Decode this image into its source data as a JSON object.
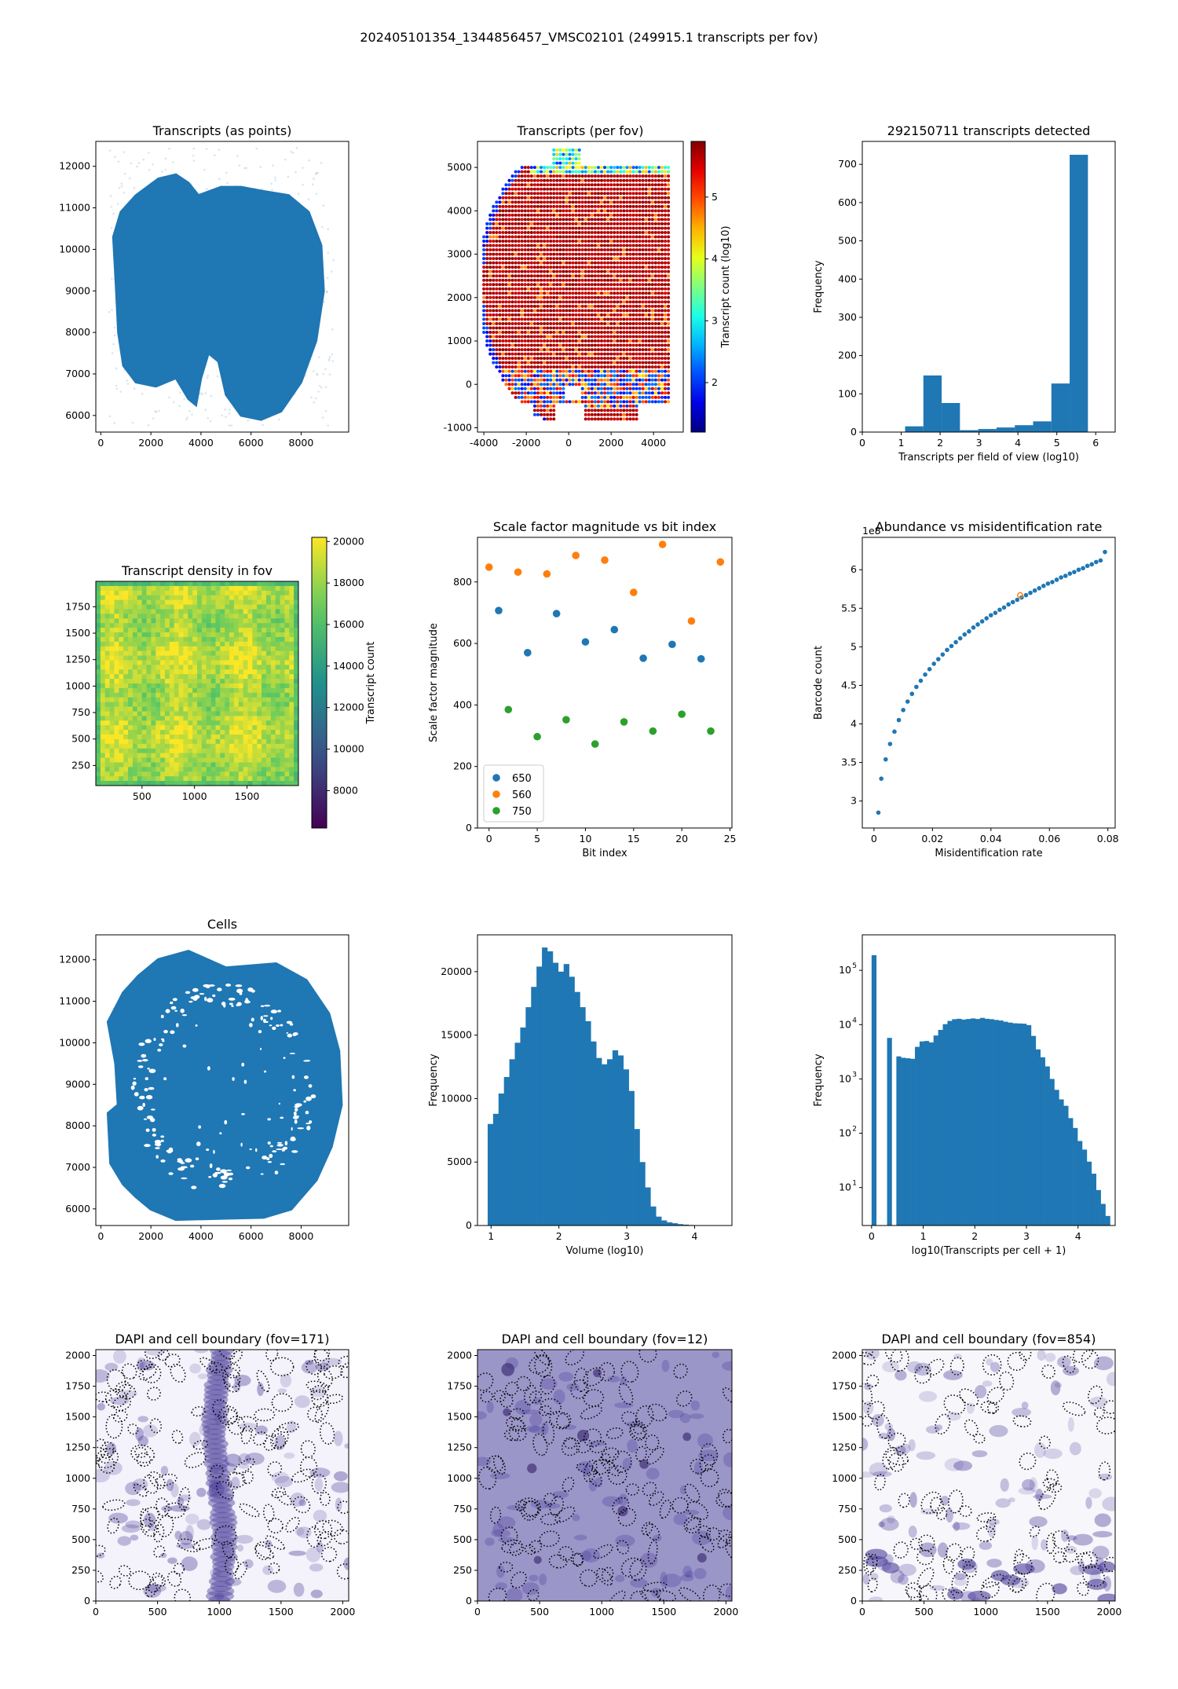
{
  "suptitle": "202405101354_1344856457_VMSC02101 (249915.1 transcripts per fov)",
  "colors": {
    "blue": "#1f77b4",
    "orange": "#ff7f0e",
    "green": "#2ca02c",
    "dapi": "#4a3d9a"
  },
  "chart_data": [
    {
      "id": "transcripts-points",
      "type": "scatter",
      "title": "Transcripts (as points)",
      "xlabel": "",
      "ylabel": "",
      "xlim": [
        -200,
        9900
      ],
      "ylim": [
        5600,
        12600
      ],
      "xticks": [
        0,
        2000,
        4000,
        6000,
        8000
      ],
      "yticks": [
        6000,
        7000,
        8000,
        9000,
        10000,
        11000,
        12000
      ],
      "shape": [
        [
          500,
          10300
        ],
        [
          600,
          9200
        ],
        [
          700,
          8000
        ],
        [
          900,
          7200
        ],
        [
          1400,
          6800
        ],
        [
          2200,
          6700
        ],
        [
          3000,
          6900
        ],
        [
          3500,
          6400
        ],
        [
          3800,
          6250
        ],
        [
          4000,
          6900
        ],
        [
          4300,
          7500
        ],
        [
          4700,
          7300
        ],
        [
          5000,
          6500
        ],
        [
          5600,
          6000
        ],
        [
          6400,
          5900
        ],
        [
          7200,
          6100
        ],
        [
          8000,
          6800
        ],
        [
          8600,
          7800
        ],
        [
          8900,
          9000
        ],
        [
          8800,
          10100
        ],
        [
          8300,
          10900
        ],
        [
          7500,
          11300
        ],
        [
          6500,
          11400
        ],
        [
          5600,
          11500
        ],
        [
          4800,
          11500
        ],
        [
          3900,
          11300
        ],
        [
          3500,
          11600
        ],
        [
          3000,
          11800
        ],
        [
          2300,
          11700
        ],
        [
          1400,
          11300
        ],
        [
          800,
          10900
        ]
      ],
      "halo": [
        [
          400,
          11000
        ],
        [
          9300,
          11000
        ],
        [
          9500,
          8000
        ],
        [
          9100,
          6300
        ],
        [
          7000,
          5800
        ],
        [
          3000,
          5800
        ],
        [
          800,
          6400
        ],
        [
          300,
          8500
        ]
      ]
    },
    {
      "id": "transcripts-fov",
      "type": "scatter",
      "title": "Transcripts (per fov)",
      "xlabel": "",
      "ylabel": "",
      "xlim": [
        -4300,
        5400
      ],
      "ylim": [
        -1100,
        5600
      ],
      "xticks": [
        -4000,
        -2000,
        0,
        2000,
        4000
      ],
      "yticks": [
        -1000,
        0,
        1000,
        2000,
        3000,
        4000,
        5000
      ],
      "colorbar": {
        "label": "Transcript count (log10)",
        "ticks": [
          2,
          3,
          4,
          5
        ],
        "range": [
          1.2,
          5.9
        ],
        "colormap": "jet"
      }
    },
    {
      "id": "transcripts-hist",
      "type": "bar",
      "title": "292150711 transcripts detected",
      "xlabel": "Transcripts per field of view (log10)",
      "ylabel": "Frequency",
      "xlim": [
        0,
        6.5
      ],
      "ylim": [
        0,
        760
      ],
      "xticks": [
        0,
        1,
        2,
        3,
        4,
        5,
        6
      ],
      "yticks": [
        0,
        100,
        200,
        300,
        400,
        500,
        600,
        700
      ],
      "bin_edges": [
        1.1,
        1.57,
        2.04,
        2.51,
        2.98,
        3.45,
        3.92,
        4.39,
        4.86,
        5.33,
        5.8
      ],
      "values": [
        15,
        148,
        76,
        5,
        8,
        12,
        18,
        28,
        127,
        725
      ]
    },
    {
      "id": "density-fov",
      "type": "heatmap",
      "title": "Transcript density in fov",
      "xlabel": "",
      "ylabel": "",
      "xlim": [
        60,
        1990
      ],
      "ylim": [
        60,
        1990
      ],
      "xticks": [
        500,
        1000,
        1500
      ],
      "yticks": [
        250,
        500,
        750,
        1000,
        1250,
        1500,
        1750
      ],
      "colorbar": {
        "label": "Transcript count",
        "ticks": [
          8000,
          10000,
          12000,
          14000,
          16000,
          18000,
          20000
        ],
        "range": [
          6200,
          20200
        ],
        "colormap": "viridis"
      }
    },
    {
      "id": "scale-factor",
      "type": "scatter",
      "title": "Scale factor magnitude vs bit index",
      "xlabel": "Bit index",
      "ylabel": "Scale factor magnitude",
      "xlim": [
        -1.2,
        25.2
      ],
      "ylim": [
        0,
        945
      ],
      "xticks": [
        0,
        5,
        10,
        15,
        20,
        25
      ],
      "yticks": [
        0,
        200,
        400,
        600,
        800
      ],
      "legend": "lower-left",
      "series": [
        {
          "name": "650",
          "color": "#1f77b4",
          "x": [
            1,
            4,
            7,
            10,
            13,
            16,
            19,
            22
          ],
          "y": [
            707,
            570,
            697,
            605,
            645,
            552,
            597,
            550
          ]
        },
        {
          "name": "560",
          "color": "#ff7f0e",
          "x": [
            0,
            3,
            6,
            9,
            12,
            15,
            18,
            21,
            24
          ],
          "y": [
            848,
            832,
            826,
            886,
            871,
            766,
            922,
            673,
            865
          ]
        },
        {
          "name": "750",
          "color": "#2ca02c",
          "x": [
            2,
            5,
            8,
            11,
            14,
            17,
            20,
            23
          ],
          "y": [
            385,
            297,
            352,
            273,
            345,
            315,
            370,
            315
          ]
        }
      ]
    },
    {
      "id": "abundance",
      "type": "scatter",
      "title": "Abundance vs misidentification rate",
      "xlabel": "Misidentification rate",
      "ylabel": "Barcode count",
      "offset_text": "1e8",
      "xlim": [
        -0.004,
        0.0825
      ],
      "ylim": [
        2.65,
        6.42
      ],
      "xticks": [
        0.0,
        0.02,
        0.04,
        0.06,
        0.08
      ],
      "yticks": [
        3.0,
        3.5,
        4.0,
        4.5,
        5.0,
        5.5,
        6.0
      ],
      "series": [
        {
          "color": "#1f77b4",
          "x": [
            0.0015,
            0.0025,
            0.004,
            0.0055,
            0.007,
            0.0085,
            0.01,
            0.0115,
            0.013,
            0.0145,
            0.016,
            0.0175,
            0.019,
            0.0205,
            0.022,
            0.0235,
            0.025,
            0.0265,
            0.028,
            0.0295,
            0.031,
            0.0325,
            0.034,
            0.0355,
            0.037,
            0.0385,
            0.04,
            0.0415,
            0.043,
            0.0445,
            0.046,
            0.0475,
            0.049,
            0.0505,
            0.052,
            0.0535,
            0.055,
            0.0565,
            0.058,
            0.0595,
            0.061,
            0.0625,
            0.064,
            0.0655,
            0.067,
            0.0685,
            0.07,
            0.0715,
            0.073,
            0.0745,
            0.076,
            0.0775,
            0.079
          ],
          "y": [
            2.85,
            3.29,
            3.54,
            3.74,
            3.9,
            4.05,
            4.18,
            4.29,
            4.39,
            4.48,
            4.56,
            4.64,
            4.71,
            4.78,
            4.84,
            4.9,
            4.96,
            5.01,
            5.06,
            5.11,
            5.16,
            5.2,
            5.25,
            5.29,
            5.33,
            5.37,
            5.41,
            5.44,
            5.48,
            5.51,
            5.55,
            5.58,
            5.61,
            5.64,
            5.67,
            5.7,
            5.73,
            5.76,
            5.79,
            5.82,
            5.84,
            5.87,
            5.9,
            5.92,
            5.95,
            5.97,
            6.0,
            6.02,
            6.05,
            6.07,
            6.1,
            6.12,
            6.23
          ]
        }
      ],
      "highlight": {
        "color": "#ff7f0e",
        "x": 0.05,
        "y": 5.67
      }
    },
    {
      "id": "cells",
      "type": "scatter",
      "title": "Cells",
      "xlabel": "",
      "ylabel": "",
      "xlim": [
        -200,
        9900
      ],
      "ylim": [
        5600,
        12600
      ],
      "xticks": [
        0,
        2000,
        4000,
        6000,
        8000
      ],
      "yticks": [
        6000,
        7000,
        8000,
        9000,
        10000,
        11000,
        12000
      ]
    },
    {
      "id": "volume-hist",
      "type": "bar",
      "title": "",
      "xlabel": "Volume (log10)",
      "ylabel": "Frequency",
      "xlim": [
        0.8,
        4.55
      ],
      "ylim": [
        0,
        22900
      ],
      "xticks": [
        1,
        2,
        3,
        4
      ],
      "yticks": [
        0,
        5000,
        10000,
        15000,
        20000
      ],
      "bin_edges": [
        0.95,
        1.03,
        1.11,
        1.19,
        1.27,
        1.35,
        1.43,
        1.51,
        1.59,
        1.67,
        1.75,
        1.83,
        1.91,
        1.99,
        2.07,
        2.15,
        2.23,
        2.31,
        2.39,
        2.47,
        2.55,
        2.63,
        2.71,
        2.79,
        2.87,
        2.95,
        3.03,
        3.11,
        3.19,
        3.27,
        3.35,
        3.43,
        3.51,
        3.59,
        3.67,
        3.75,
        3.83,
        3.91,
        3.99,
        4.07
      ],
      "values": [
        8000,
        8800,
        10400,
        11700,
        13100,
        14400,
        15600,
        17200,
        18800,
        20400,
        21900,
        21600,
        20700,
        20000,
        20600,
        19600,
        18400,
        17200,
        16100,
        14500,
        13200,
        12700,
        13100,
        13800,
        13400,
        12300,
        10600,
        7600,
        5000,
        3000,
        1500,
        700,
        400,
        250,
        180,
        110,
        70,
        40,
        20
      ]
    },
    {
      "id": "transcripts-per-cell",
      "type": "bar",
      "title": "",
      "xlabel": "log10(Transcripts per cell + 1)",
      "ylabel": "Frequency",
      "yscale": "log",
      "xlim": [
        -0.18,
        4.72
      ],
      "ylim": [
        2,
        450000
      ],
      "xticks": [
        0,
        1,
        2,
        3,
        4
      ],
      "ytick_values": [
        10,
        100,
        1000,
        10000,
        100000
      ],
      "ytick_labels": [
        "10",
        "10",
        "10",
        "10",
        "10"
      ],
      "ytick_exponents": [
        "1",
        "2",
        "3",
        "4",
        "5"
      ],
      "bars": [
        [
          0.0,
          0.09,
          190000
        ],
        [
          0.3,
          0.39,
          5700
        ],
        [
          0.48,
          0.57,
          2600
        ],
        [
          0.57,
          0.66,
          2450
        ],
        [
          0.66,
          0.75,
          2400
        ],
        [
          0.75,
          0.84,
          2350
        ],
        [
          0.84,
          0.93,
          3900
        ],
        [
          0.93,
          1.02,
          4900
        ],
        [
          1.02,
          1.11,
          5000
        ],
        [
          1.11,
          1.2,
          4700
        ],
        [
          1.2,
          1.29,
          6300
        ],
        [
          1.29,
          1.38,
          8000
        ],
        [
          1.38,
          1.47,
          10200
        ],
        [
          1.47,
          1.56,
          11700
        ],
        [
          1.56,
          1.65,
          12600
        ],
        [
          1.65,
          1.74,
          12800
        ],
        [
          1.74,
          1.83,
          12400
        ],
        [
          1.83,
          1.92,
          12700
        ],
        [
          1.92,
          2.01,
          13000
        ],
        [
          2.01,
          2.1,
          12700
        ],
        [
          2.1,
          2.19,
          13300
        ],
        [
          2.19,
          2.28,
          12800
        ],
        [
          2.28,
          2.37,
          12600
        ],
        [
          2.37,
          2.46,
          12200
        ],
        [
          2.46,
          2.55,
          11900
        ],
        [
          2.55,
          2.64,
          11300
        ],
        [
          2.64,
          2.73,
          10900
        ],
        [
          2.73,
          2.82,
          10600
        ],
        [
          2.82,
          2.91,
          10500
        ],
        [
          2.91,
          3.0,
          10400
        ],
        [
          3.0,
          3.09,
          9800
        ],
        [
          3.09,
          3.18,
          6200
        ],
        [
          3.18,
          3.27,
          3500
        ],
        [
          3.27,
          3.36,
          2500
        ],
        [
          3.36,
          3.45,
          1700
        ],
        [
          3.45,
          3.54,
          1000
        ],
        [
          3.54,
          3.63,
          630
        ],
        [
          3.63,
          3.72,
          420
        ],
        [
          3.72,
          3.81,
          320
        ],
        [
          3.81,
          3.9,
          190
        ],
        [
          3.9,
          3.99,
          125
        ],
        [
          3.99,
          4.08,
          72
        ],
        [
          4.08,
          4.17,
          50
        ],
        [
          4.17,
          4.26,
          30
        ],
        [
          4.26,
          4.35,
          18
        ],
        [
          4.35,
          4.44,
          9
        ],
        [
          4.44,
          4.53,
          5
        ],
        [
          4.53,
          4.62,
          3
        ]
      ]
    },
    {
      "id": "dapi-171",
      "type": "heatmap",
      "title": "DAPI and cell boundary (fov=171)",
      "xlabel": "",
      "ylabel": "",
      "xlim": [
        0,
        2048
      ],
      "ylim": [
        0,
        2048
      ],
      "xticks": [
        0,
        500,
        1000,
        1500,
        2000
      ],
      "yticks": [
        0,
        250,
        500,
        750,
        1000,
        1250,
        1500,
        1750,
        2000
      ]
    },
    {
      "id": "dapi-12",
      "type": "heatmap",
      "title": "DAPI and cell boundary (fov=12)",
      "xlabel": "",
      "ylabel": "",
      "xlim": [
        0,
        2048
      ],
      "ylim": [
        0,
        2048
      ],
      "xticks": [
        0,
        500,
        1000,
        1500,
        2000
      ],
      "yticks": [
        0,
        250,
        500,
        750,
        1000,
        1250,
        1500,
        1750,
        2000
      ]
    },
    {
      "id": "dapi-854",
      "type": "heatmap",
      "title": "DAPI and cell boundary (fov=854)",
      "xlabel": "",
      "ylabel": "",
      "xlim": [
        0,
        2048
      ],
      "ylim": [
        0,
        2048
      ],
      "xticks": [
        0,
        500,
        1000,
        1500,
        2000
      ],
      "yticks": [
        0,
        250,
        500,
        750,
        1000,
        1250,
        1500,
        1750,
        2000
      ]
    }
  ]
}
